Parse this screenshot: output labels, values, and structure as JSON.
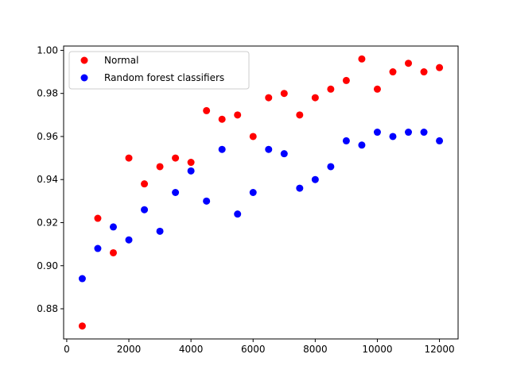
{
  "chart_data": {
    "type": "scatter",
    "title": "",
    "xlabel": "",
    "ylabel": "",
    "xlim": [
      -100,
      12600
    ],
    "ylim": [
      0.866,
      1.002
    ],
    "xticks": [
      0,
      2000,
      4000,
      6000,
      8000,
      10000,
      12000
    ],
    "xtick_labels": [
      "0",
      "2000",
      "4000",
      "6000",
      "8000",
      "10000",
      "12000"
    ],
    "yticks": [
      0.88,
      0.9,
      0.92,
      0.94,
      0.96,
      0.98,
      1.0
    ],
    "ytick_labels": [
      "0.88",
      "0.90",
      "0.92",
      "0.94",
      "0.96",
      "0.98",
      "1.00"
    ],
    "grid": false,
    "legend_position": "top-left",
    "series": [
      {
        "name": "Normal",
        "color": "#ff0000",
        "x": [
          500,
          1000,
          1500,
          2000,
          2500,
          3000,
          3500,
          4000,
          4500,
          5000,
          5500,
          6000,
          6500,
          7000,
          7500,
          8000,
          8500,
          9000,
          9500,
          10000,
          10500,
          11000,
          11500,
          12000
        ],
        "y": [
          0.872,
          0.922,
          0.906,
          0.95,
          0.938,
          0.946,
          0.95,
          0.948,
          0.972,
          0.968,
          0.97,
          0.96,
          0.978,
          0.98,
          0.97,
          0.978,
          0.982,
          0.986,
          0.996,
          0.982,
          0.99,
          0.994,
          0.99,
          0.992
        ]
      },
      {
        "name": "Random forest classifiers",
        "color": "#0000ff",
        "x": [
          500,
          1000,
          1500,
          2000,
          2500,
          3000,
          3500,
          4000,
          4500,
          5000,
          5500,
          6000,
          6500,
          7000,
          7500,
          8000,
          8500,
          9000,
          9500,
          10000,
          10500,
          11000,
          11500,
          12000
        ],
        "y": [
          0.894,
          0.908,
          0.918,
          0.912,
          0.926,
          0.916,
          0.934,
          0.944,
          0.93,
          0.954,
          0.924,
          0.934,
          0.954,
          0.952,
          0.936,
          0.94,
          0.946,
          0.958,
          0.956,
          0.962,
          0.96,
          0.962,
          0.962,
          0.958
        ]
      }
    ]
  }
}
